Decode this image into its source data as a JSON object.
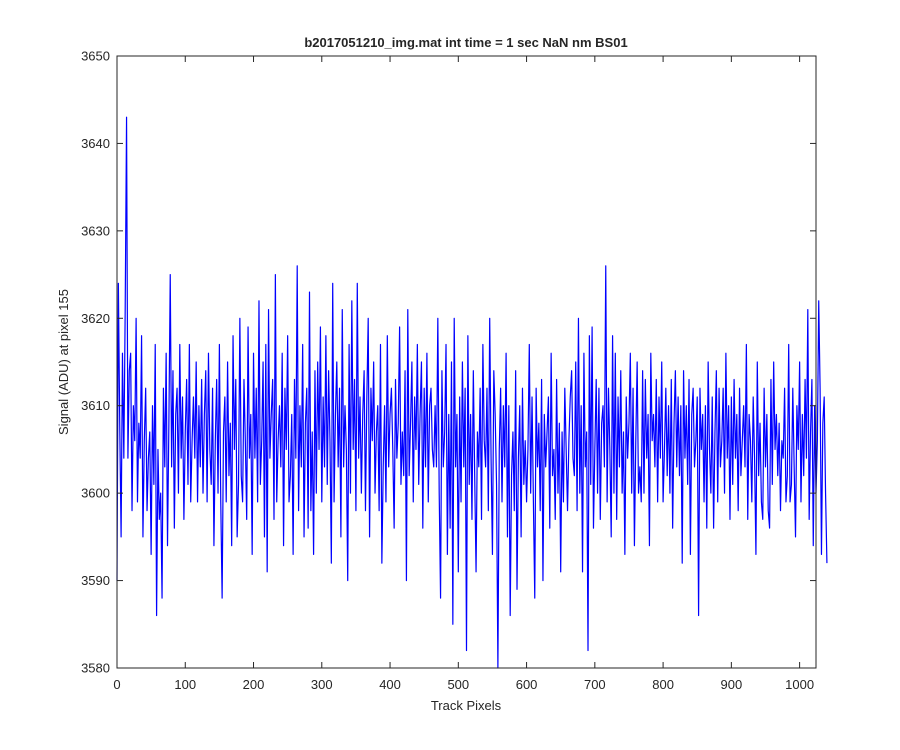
{
  "chart_data": {
    "type": "line",
    "title": "b2017051210_img.mat int time = 1 sec  NaN nm BS01",
    "xlabel": "Track Pixels",
    "ylabel": "Signal (ADU) at pixel 155",
    "xlim": [
      0,
      1024
    ],
    "ylim": [
      3580,
      3650
    ],
    "xticks": [
      0,
      100,
      200,
      300,
      400,
      500,
      600,
      700,
      800,
      900,
      1000
    ],
    "yticks": [
      3580,
      3590,
      3600,
      3610,
      3620,
      3630,
      3640,
      3650
    ],
    "grid": false,
    "line_color": "#0000ff",
    "series": [
      {
        "x_start": 0,
        "x_step": 2,
        "values": [
          3590,
          3624,
          3608,
          3595,
          3616,
          3604,
          3621,
          3643,
          3604,
          3614,
          3616,
          3598,
          3610,
          3606,
          3620,
          3599,
          3608,
          3604,
          3618,
          3595,
          3606,
          3612,
          3598,
          3604,
          3607,
          3593,
          3610,
          3601,
          3617,
          3586,
          3605,
          3597,
          3600,
          3588,
          3612,
          3603,
          3616,
          3594,
          3608,
          3625,
          3603,
          3614,
          3596,
          3609,
          3612,
          3600,
          3617,
          3604,
          3611,
          3597,
          3607,
          3613,
          3601,
          3617,
          3599,
          3606,
          3611,
          3604,
          3615,
          3599,
          3610,
          3603,
          3613,
          3600,
          3609,
          3614,
          3599,
          3616,
          3605,
          3601,
          3612,
          3594,
          3606,
          3613,
          3600,
          3617,
          3599,
          3588,
          3607,
          3611,
          3599,
          3615,
          3602,
          3608,
          3594,
          3618,
          3605,
          3613,
          3595,
          3601,
          3620,
          3602,
          3599,
          3613,
          3606,
          3597,
          3619,
          3604,
          3609,
          3593,
          3616,
          3604,
          3612,
          3599,
          3622,
          3601,
          3606,
          3615,
          3595,
          3617,
          3591,
          3621,
          3604,
          3609,
          3613,
          3597,
          3625,
          3599,
          3606,
          3610,
          3603,
          3616,
          3594,
          3612,
          3605,
          3618,
          3599,
          3602,
          3609,
          3593,
          3613,
          3604,
          3626,
          3598,
          3610,
          3603,
          3617,
          3595,
          3608,
          3612,
          3596,
          3623,
          3598,
          3607,
          3593,
          3614,
          3600,
          3615,
          3605,
          3619,
          3599,
          3611,
          3603,
          3618,
          3601,
          3614,
          3606,
          3592,
          3624,
          3599,
          3609,
          3615,
          3603,
          3612,
          3595,
          3621,
          3603,
          3610,
          3605,
          3590,
          3617,
          3600,
          3622,
          3605,
          3613,
          3598,
          3624,
          3604,
          3611,
          3600,
          3609,
          3614,
          3598,
          3611,
          3620,
          3595,
          3612,
          3606,
          3615,
          3600,
          3607,
          3610,
          3598,
          3617,
          3592,
          3603,
          3610,
          3599,
          3618,
          3603,
          3609,
          3612,
          3605,
          3596,
          3613,
          3604,
          3608,
          3619,
          3601,
          3607,
          3602,
          3614,
          3590,
          3621,
          3602,
          3608,
          3615,
          3599,
          3611,
          3605,
          3617,
          3601,
          3609,
          3615,
          3596,
          3612,
          3603,
          3616,
          3599,
          3610,
          3612,
          3605,
          3603,
          3610,
          3603,
          3620,
          3600,
          3588,
          3614,
          3603,
          3607,
          3617,
          3593,
          3609,
          3596,
          3615,
          3585,
          3620,
          3603,
          3609,
          3591,
          3611,
          3599,
          3615,
          3603,
          3612,
          3582,
          3618,
          3601,
          3609,
          3597,
          3614,
          3602,
          3591,
          3607,
          3603,
          3612,
          3597,
          3617,
          3606,
          3603,
          3612,
          3598,
          3620,
          3604,
          3593,
          3614,
          3609,
          3601,
          3580,
          3605,
          3612,
          3599,
          3610,
          3603,
          3616,
          3595,
          3610,
          3586,
          3602,
          3607,
          3598,
          3614,
          3589,
          3604,
          3610,
          3595,
          3612,
          3601,
          3606,
          3599,
          3605,
          3617,
          3600,
          3611,
          3599,
          3588,
          3612,
          3603,
          3608,
          3598,
          3613,
          3590,
          3609,
          3603,
          3607,
          3611,
          3596,
          3616,
          3602,
          3605,
          3597,
          3613,
          3600,
          3608,
          3591,
          3607,
          3599,
          3612,
          3605,
          3598,
          3606,
          3611,
          3614,
          3604,
          3602,
          3615,
          3598,
          3620,
          3600,
          3610,
          3591,
          3616,
          3603,
          3607,
          3582,
          3618,
          3601,
          3619,
          3596,
          3605,
          3613,
          3600,
          3612,
          3597,
          3608,
          3610,
          3603,
          3626,
          3599,
          3612,
          3605,
          3595,
          3618,
          3600,
          3616,
          3597,
          3611,
          3603,
          3614,
          3600,
          3607,
          3593,
          3611,
          3604,
          3608,
          3616,
          3600,
          3612,
          3594,
          3606,
          3615,
          3600,
          3603,
          3599,
          3614,
          3600,
          3613,
          3604,
          3609,
          3594,
          3616,
          3606,
          3609,
          3603,
          3613,
          3599,
          3611,
          3604,
          3615,
          3599,
          3605,
          3612,
          3602,
          3610,
          3600,
          3613,
          3596,
          3608,
          3614,
          3603,
          3611,
          3602,
          3610,
          3592,
          3614,
          3604,
          3610,
          3601,
          3613,
          3593,
          3609,
          3612,
          3603,
          3606,
          3611,
          3586,
          3612,
          3605,
          3609,
          3599,
          3610,
          3596,
          3615,
          3605,
          3600,
          3611,
          3596,
          3607,
          3614,
          3599,
          3612,
          3603,
          3606,
          3612,
          3600,
          3616,
          3604,
          3610,
          3597,
          3611,
          3601,
          3613,
          3604,
          3609,
          3598,
          3612,
          3602,
          3606,
          3610,
          3603,
          3617,
          3597,
          3609,
          3606,
          3599,
          3611,
          3604,
          3593,
          3615,
          3602,
          3608,
          3599,
          3597,
          3612,
          3603,
          3609,
          3598,
          3596,
          3613,
          3601,
          3615,
          3605,
          3609,
          3602,
          3608,
          3598,
          3606,
          3604,
          3612,
          3599,
          3602,
          3617,
          3599,
          3601,
          3612,
          3603,
          3595,
          3610,
          3605,
          3615,
          3599,
          3609,
          3602,
          3613,
          3604,
          3621,
          3597,
          3607,
          3613,
          3594,
          3610,
          3600,
          3606,
          3622,
          3612,
          3593,
          3608,
          3611,
          3600,
          3592
        ]
      }
    ]
  }
}
